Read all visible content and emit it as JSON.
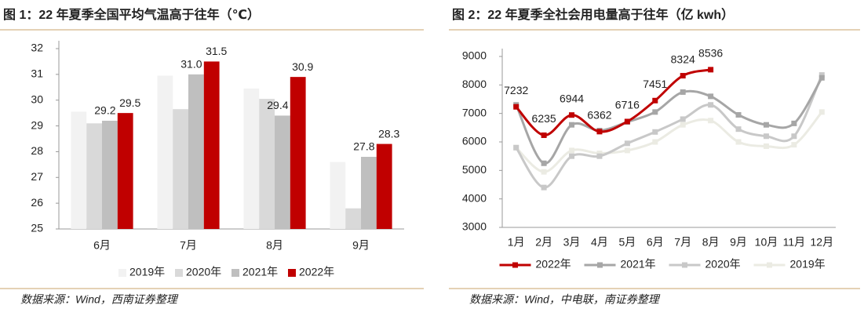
{
  "chart_data": [
    {
      "type": "bar",
      "title": "图 1：22 年夏季全国平均气温高于往年（℃）",
      "source": "数据来源：Wind，西南证券整理",
      "categories": [
        "6月",
        "7月",
        "8月",
        "9月"
      ],
      "series": [
        {
          "name": "2019年",
          "color": "#f2f2f2",
          "values": [
            29.55,
            30.95,
            30.45,
            27.6
          ]
        },
        {
          "name": "2020年",
          "color": "#d9d9d9",
          "values": [
            29.1,
            29.65,
            30.05,
            25.8
          ]
        },
        {
          "name": "2021年",
          "color": "#bfbfbf",
          "values": [
            29.2,
            31,
            29.4,
            27.8
          ],
          "value_labels": [
            "29.2",
            "31.0",
            "29.4",
            "27.8"
          ]
        },
        {
          "name": "2022年",
          "color": "#c00000",
          "values": [
            29.5,
            31.5,
            30.9,
            28.3
          ],
          "value_labels": [
            "29.5",
            "31.5",
            "30.9",
            "28.3"
          ]
        }
      ],
      "ylim": [
        25,
        32
      ],
      "yticks": [
        25,
        26,
        27,
        28,
        29,
        30,
        31,
        32
      ],
      "grid": false,
      "legend": "bottom"
    },
    {
      "type": "line",
      "title": "图 2：22 年夏季全社会用电量高于往年（亿 kwh）",
      "source": "数据来源：Wind，中电联，南证券整理",
      "categories": [
        "1月",
        "2月",
        "3月",
        "4月",
        "5月",
        "6月",
        "7月",
        "8月",
        "9月",
        "10月",
        "11月",
        "12月"
      ],
      "series": [
        {
          "name": "2022年",
          "color": "#c00000",
          "data_labels": true,
          "values": [
            7232,
            6235,
            6944,
            6362,
            6716,
            7451,
            8324,
            8536,
            null,
            null,
            null,
            null
          ]
        },
        {
          "name": "2021年",
          "color": "#a6a6a6",
          "values": [
            7300,
            5250,
            6600,
            6400,
            6700,
            7050,
            7750,
            7600,
            6950,
            6600,
            6650,
            8250
          ]
        },
        {
          "name": "2020年",
          "color": "#c8c8c8",
          "values": [
            5800,
            4400,
            5500,
            5500,
            5950,
            6350,
            6800,
            7300,
            6450,
            6200,
            6200,
            8350
          ]
        },
        {
          "name": "2019年",
          "color": "#ebebe3",
          "values": [
            5800,
            4950,
            5700,
            5600,
            5700,
            6000,
            6600,
            6750,
            6000,
            5850,
            5900,
            7050
          ]
        }
      ],
      "ylim": [
        3000,
        9000
      ],
      "yticks": [
        3000,
        4000,
        5000,
        6000,
        7000,
        8000,
        9000
      ],
      "grid": false,
      "legend": "bottom"
    }
  ]
}
